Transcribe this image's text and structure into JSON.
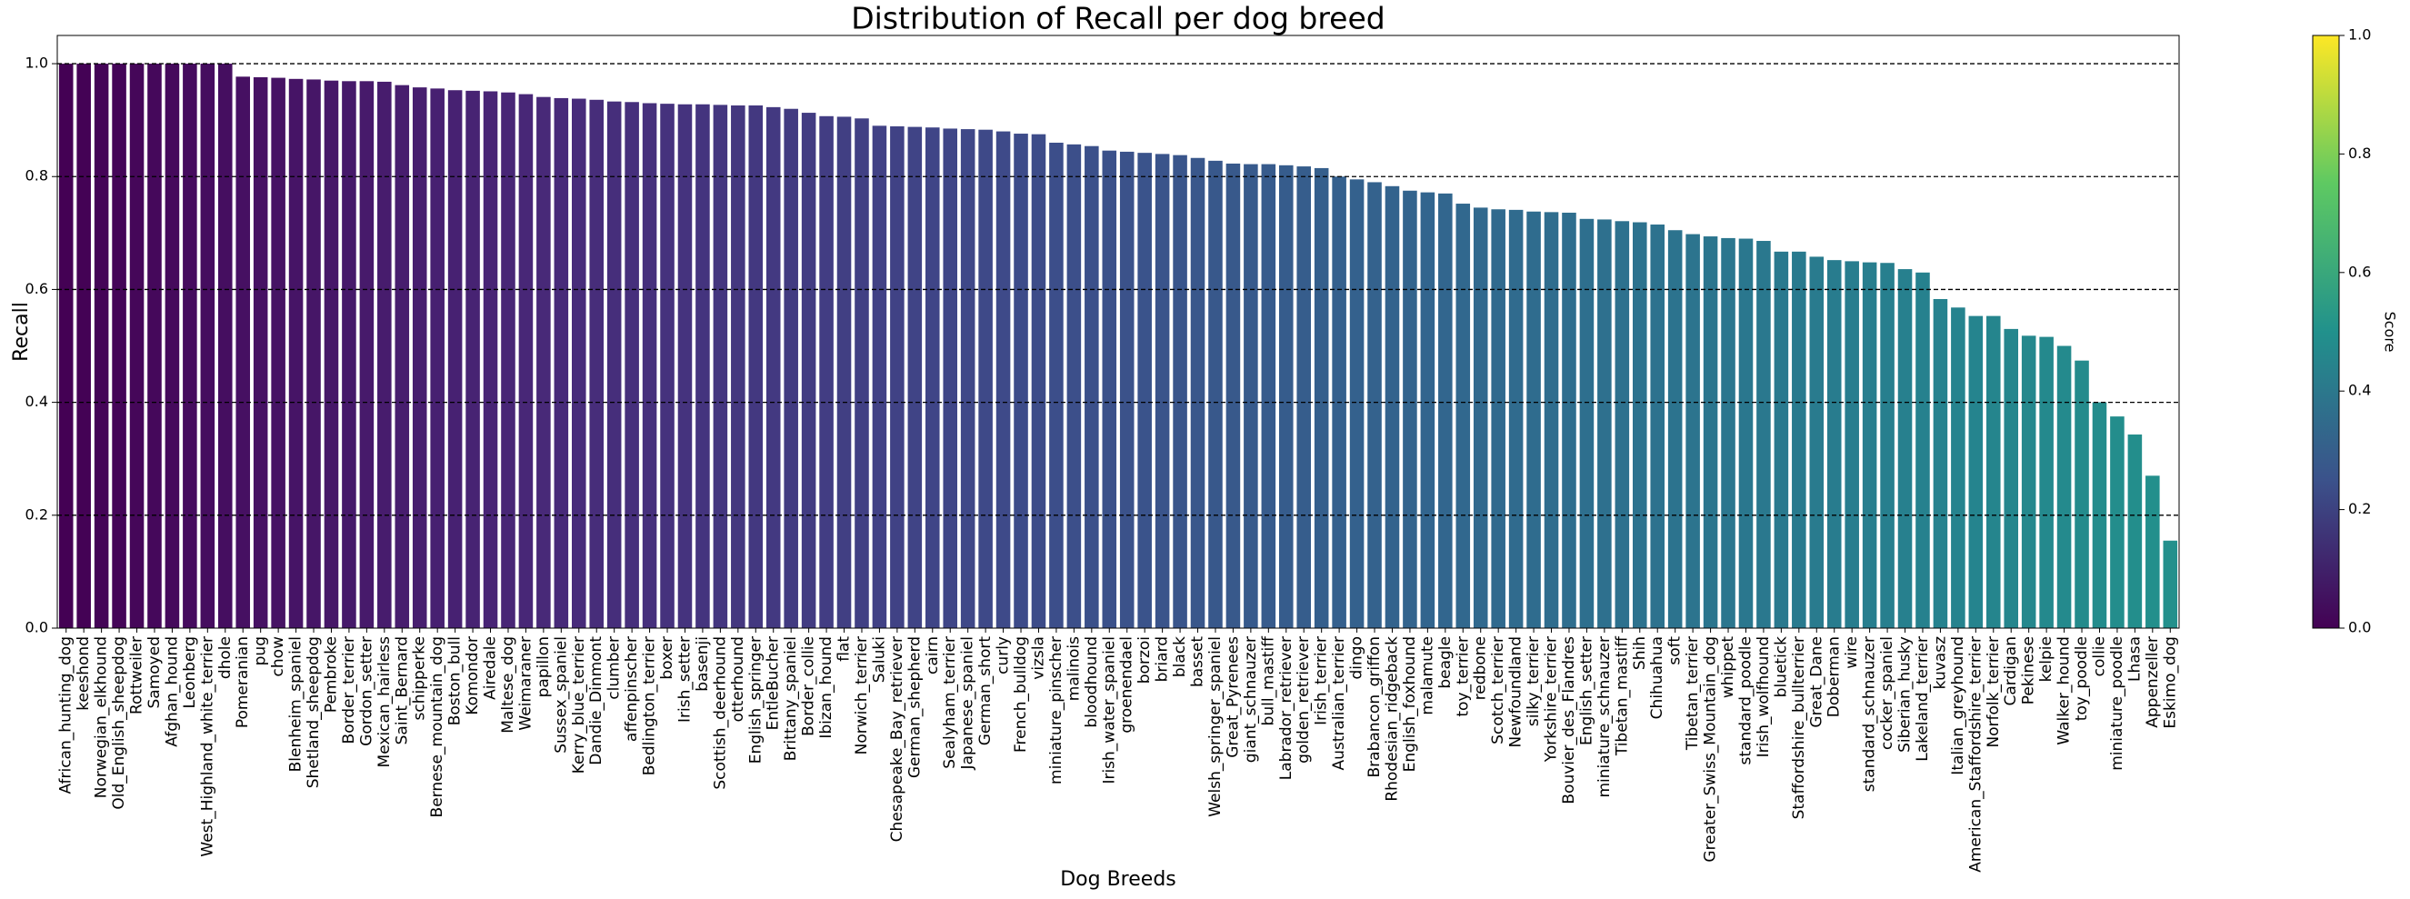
{
  "chart_data": {
    "type": "bar",
    "title": "Distribution of Recall per dog breed",
    "x_label": "Dog Breeds",
    "y_label": "Recall",
    "categories": [
      "African_hunting_dog",
      "keeshond",
      "Norwegian_elkhound",
      "Old_English_sheepdog",
      "Rottweiler",
      "Samoyed",
      "Afghan_hound",
      "Leonberg",
      "West_Highland_white_terrier",
      "dhole",
      "Pomeranian",
      "pug",
      "chow",
      "Blenheim_spaniel",
      "Shetland_sheepdog",
      "Pembroke",
      "Border_terrier",
      "Gordon_setter",
      "Mexican_hairless",
      "Saint_Bernard",
      "schipperke",
      "Bernese_mountain_dog",
      "Boston_bull",
      "Komondor",
      "Airedale",
      "Maltese_dog",
      "Weimaraner",
      "papillon",
      "Sussex_spaniel",
      "Kerry_blue_terrier",
      "Dandie_Dinmont",
      "clumber",
      "affenpinscher",
      "Bedlington_terrier",
      "boxer",
      "Irish_setter",
      "basenji",
      "Scottish_deerhound",
      "otterhound",
      "English_springer",
      "EntleBucher",
      "Brittany_spaniel",
      "Border_collie",
      "Ibizan_hound",
      "flat",
      "Norwich_terrier",
      "Saluki",
      "Chesapeake_Bay_retriever",
      "German_shepherd",
      "cairn",
      "Sealyham_terrier",
      "Japanese_spaniel",
      "German_short",
      "curly",
      "French_bulldog",
      "vizsla",
      "miniature_pinscher",
      "malinois",
      "bloodhound",
      "Irish_water_spaniel",
      "groenendael",
      "borzoi",
      "briard",
      "black",
      "basset",
      "Welsh_springer_spaniel",
      "Great_Pyrenees",
      "giant_schnauzer",
      "bull_mastiff",
      "Labrador_retriever",
      "golden_retriever",
      "Irish_terrier",
      "Australian_terrier",
      "dingo",
      "Brabancon_griffon",
      "Rhodesian_ridgeback",
      "English_foxhound",
      "malamute",
      "beagle",
      "toy_terrier",
      "redbone",
      "Scotch_terrier",
      "Newfoundland",
      "silky_terrier",
      "Yorkshire_terrier",
      "Bouvier_des_Flandres",
      "English_setter",
      "miniature_schnauzer",
      "Tibetan_mastiff",
      "Shih",
      "Chihuahua",
      "soft",
      "Tibetan_terrier",
      "Greater_Swiss_Mountain_dog",
      "whippet",
      "standard_poodle",
      "Irish_wolfhound",
      "bluetick",
      "Staffordshire_bullterrier",
      "Great_Dane",
      "Doberman",
      "wire",
      "standard_schnauzer",
      "cocker_spaniel",
      "Siberian_husky",
      "Lakeland_terrier",
      "kuvasz",
      "Italian_greyhound",
      "American_Staffordshire_terrier",
      "Norfolk_terrier",
      "Cardigan",
      "Pekinese",
      "kelpie",
      "Walker_hound",
      "toy_poodle",
      "collie",
      "miniature_poodle",
      "Lhasa",
      "Appenzeller",
      "Eskimo_dog"
    ],
    "values": [
      1.0,
      1.0,
      1.0,
      1.0,
      1.0,
      1.0,
      1.0,
      1.0,
      1.0,
      1.0,
      0.977,
      0.976,
      0.975,
      0.973,
      0.972,
      0.97,
      0.969,
      0.969,
      0.968,
      0.962,
      0.958,
      0.956,
      0.953,
      0.952,
      0.951,
      0.949,
      0.946,
      0.941,
      0.939,
      0.938,
      0.936,
      0.933,
      0.932,
      0.93,
      0.929,
      0.928,
      0.928,
      0.927,
      0.926,
      0.926,
      0.923,
      0.92,
      0.913,
      0.907,
      0.906,
      0.903,
      0.89,
      0.889,
      0.888,
      0.887,
      0.885,
      0.884,
      0.883,
      0.88,
      0.876,
      0.875,
      0.86,
      0.857,
      0.854,
      0.846,
      0.844,
      0.842,
      0.84,
      0.838,
      0.833,
      0.828,
      0.823,
      0.822,
      0.822,
      0.82,
      0.818,
      0.815,
      0.8,
      0.795,
      0.79,
      0.783,
      0.775,
      0.772,
      0.77,
      0.752,
      0.745,
      0.742,
      0.741,
      0.738,
      0.737,
      0.736,
      0.725,
      0.724,
      0.721,
      0.719,
      0.715,
      0.705,
      0.698,
      0.694,
      0.691,
      0.69,
      0.686,
      0.667,
      0.667,
      0.658,
      0.652,
      0.65,
      0.648,
      0.647,
      0.636,
      0.63,
      0.583,
      0.568,
      0.553,
      0.553,
      0.53,
      0.518,
      0.516,
      0.5,
      0.474,
      0.4,
      0.375,
      0.343,
      0.27,
      0.155
    ],
    "palette": "viridis",
    "ylim": [
      0,
      1.05
    ],
    "yticks": [
      {
        "value": 0,
        "label": "0.0"
      },
      0.2,
      0.4,
      0.6,
      0.8,
      {
        "value": 1,
        "label": "1.0"
      }
    ],
    "grid": true,
    "colorbar": {
      "label": "Score",
      "lim": [
        0,
        1
      ],
      "ticks": [
        {
          "value": 0,
          "label": "0.0"
        },
        0.2,
        0.4,
        0.6,
        0.8,
        {
          "value": 1,
          "label": "1.0"
        }
      ]
    }
  }
}
